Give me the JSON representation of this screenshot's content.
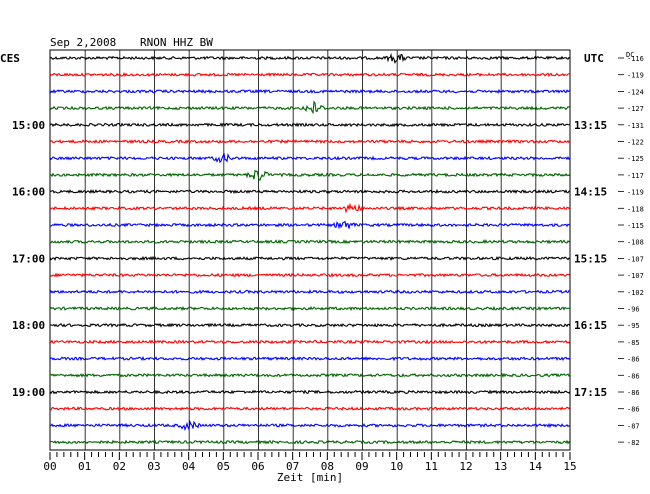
{
  "header": {
    "date": "Sep 2,2008",
    "station": "RNON HHZ BW",
    "left_tz": "CES",
    "right_tz": "UTC",
    "dc_label": "DC"
  },
  "colors": {
    "background": "#ffffff",
    "text": "#000000",
    "grid": "#000000",
    "trace_cycle": [
      "#000000",
      "#ff0000",
      "#0000ff",
      "#006400"
    ]
  },
  "chart_data": {
    "type": "line",
    "title": "Sep 2,2008   RNON HHZ BW",
    "xlabel": "Zeit [min]",
    "ylabel": "",
    "x_ticks": [
      "00",
      "01",
      "02",
      "03",
      "04",
      "05",
      "06",
      "07",
      "08",
      "09",
      "10",
      "11",
      "12",
      "13",
      "14",
      "15"
    ],
    "xlim": [
      0,
      15
    ],
    "grid": true,
    "trace_count": 24,
    "minutes_per_trace": 15,
    "left_time_labels": [
      {
        "trace": 4,
        "label": "15:00"
      },
      {
        "trace": 8,
        "label": "16:00"
      },
      {
        "trace": 12,
        "label": "17:00"
      },
      {
        "trace": 16,
        "label": "18:00"
      },
      {
        "trace": 20,
        "label": "19:00"
      }
    ],
    "right_time_labels": [
      {
        "trace": 4,
        "label": "13:15"
      },
      {
        "trace": 8,
        "label": "14:15"
      },
      {
        "trace": 12,
        "label": "15:15"
      },
      {
        "trace": 16,
        "label": "16:15"
      },
      {
        "trace": 20,
        "label": "17:15"
      }
    ],
    "dc_offsets": [
      -116,
      -119,
      -124,
      -127,
      -131,
      -122,
      -125,
      -117,
      -119,
      -118,
      -115,
      -108,
      -107,
      -107,
      -102,
      -96,
      -95,
      -85,
      -86,
      -86,
      -86,
      -86,
      -87,
      -82
    ],
    "events": [
      {
        "trace": 3,
        "minute": 7.6,
        "amplitude": "medium"
      },
      {
        "trace": 7,
        "minute": 6.0,
        "amplitude": "medium"
      },
      {
        "trace": 0,
        "minute": 10.0,
        "amplitude": "small"
      },
      {
        "trace": 6,
        "minute": 5.0,
        "amplitude": "small"
      },
      {
        "trace": 10,
        "minute": 8.5,
        "amplitude": "small"
      },
      {
        "trace": 9,
        "minute": 8.7,
        "amplitude": "small"
      },
      {
        "trace": 22,
        "minute": 4.0,
        "amplitude": "small"
      }
    ]
  }
}
